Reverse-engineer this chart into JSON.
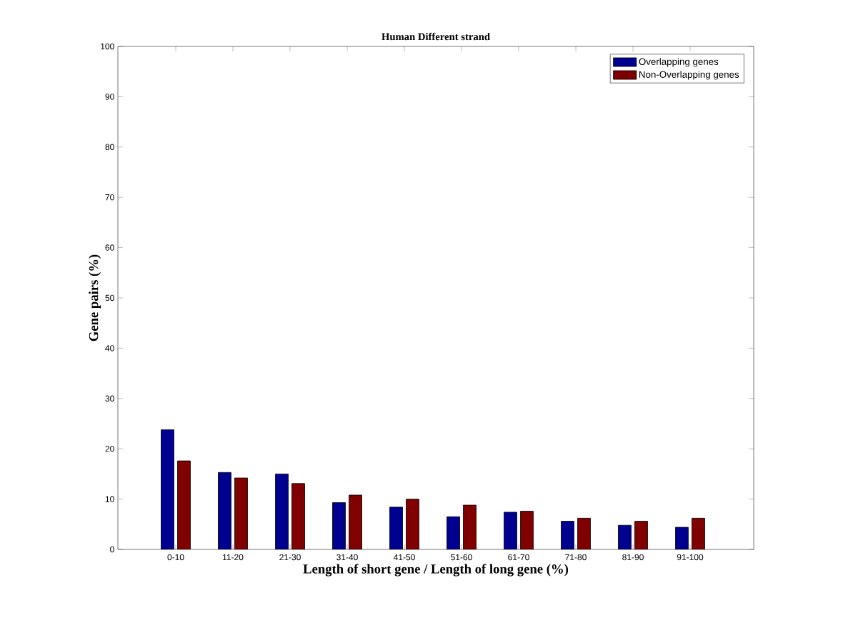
{
  "chart_data": {
    "type": "bar",
    "title": "Human Different strand",
    "xlabel": "Length of short gene / Length of long gene (%)",
    "ylabel": "Gene pairs (%)",
    "categories": [
      "0-10",
      "11-20",
      "21-30",
      "31-40",
      "41-50",
      "51-60",
      "61-70",
      "71-80",
      "81-90",
      "91-100"
    ],
    "series": [
      {
        "name": "Overlapping genes",
        "color": "#000090",
        "values": [
          23.8,
          15.3,
          15.0,
          9.3,
          8.4,
          6.5,
          7.4,
          5.6,
          4.8,
          4.4
        ]
      },
      {
        "name": "Non-Overlapping genes",
        "color": "#800000",
        "values": [
          17.6,
          14.2,
          13.1,
          10.8,
          10.0,
          8.8,
          7.6,
          6.2,
          5.6,
          6.2
        ]
      }
    ],
    "ylim": [
      0,
      100
    ],
    "yticks": [
      0,
      10,
      20,
      30,
      40,
      50,
      60,
      70,
      80,
      90,
      100
    ],
    "grid": false,
    "legend": "top right"
  }
}
